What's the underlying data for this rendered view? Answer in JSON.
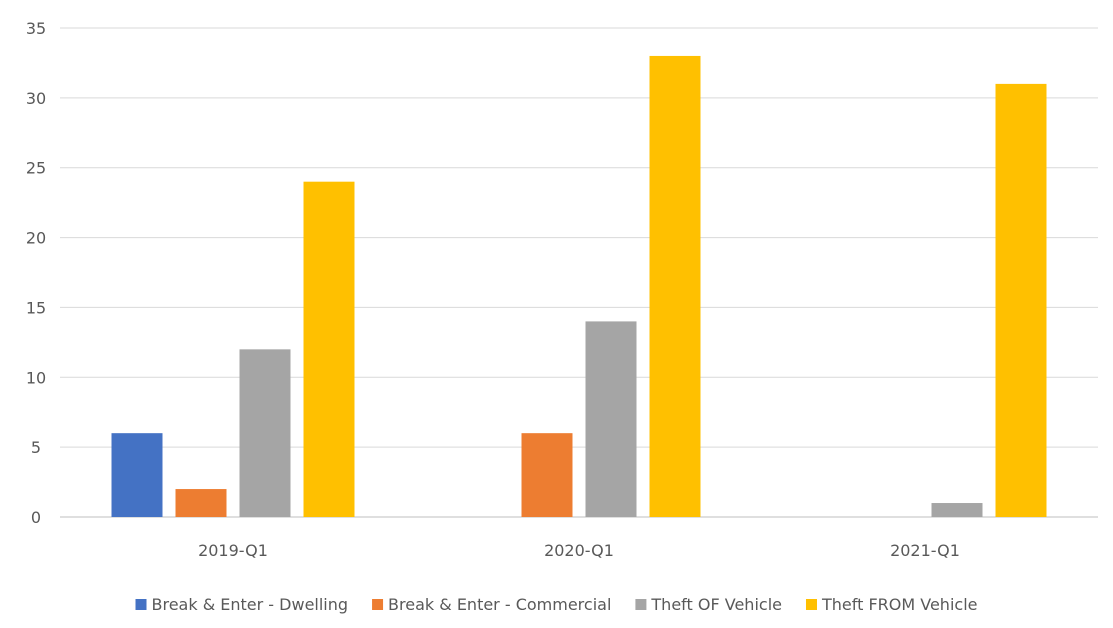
{
  "chart_data": {
    "type": "bar",
    "title": "",
    "xlabel": "",
    "ylabel": "",
    "categories": [
      "2019-Q1",
      "2020-Q1",
      "2021-Q1"
    ],
    "ylim": [
      0,
      35
    ],
    "yticks": [
      0,
      5,
      10,
      15,
      20,
      25,
      30,
      35
    ],
    "grid": true,
    "legend_position": "bottom",
    "series": [
      {
        "name": "Break & Enter - Dwelling",
        "values": [
          6,
          0,
          0
        ],
        "color": "#4472C4"
      },
      {
        "name": "Break & Enter - Commercial",
        "values": [
          2,
          6,
          0
        ],
        "color": "#ED7D31"
      },
      {
        "name": "Theft OF Vehicle",
        "values": [
          12,
          14,
          1
        ],
        "color": "#A5A5A5"
      },
      {
        "name": "Theft FROM Vehicle",
        "values": [
          24,
          33,
          31
        ],
        "color": "#FFC000"
      }
    ]
  }
}
